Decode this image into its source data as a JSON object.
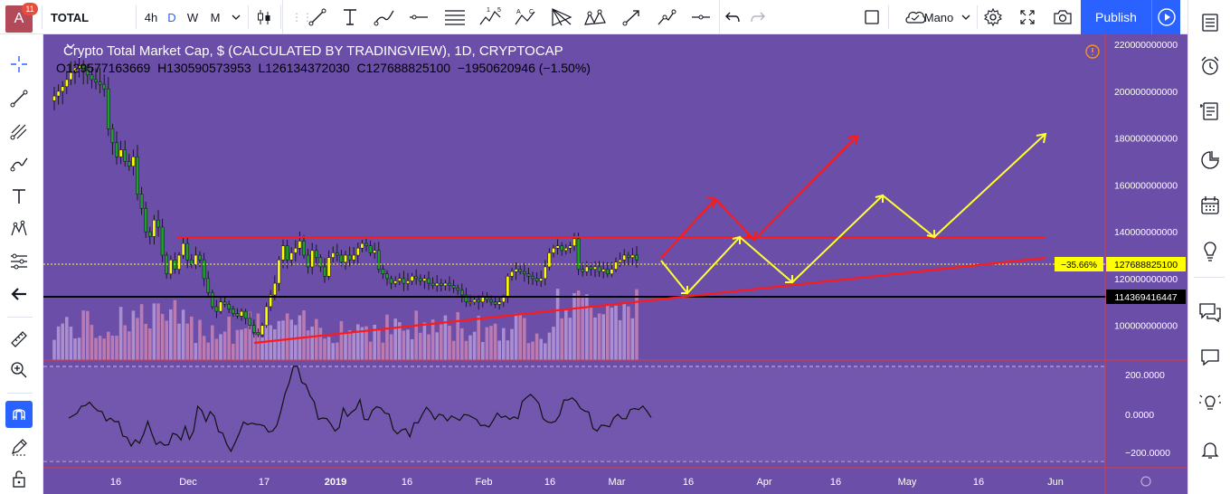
{
  "toolbar": {
    "symbol": "TOTAL",
    "intervals": [
      "4h",
      "D",
      "W",
      "M"
    ],
    "active_interval": "D",
    "layout_name": "Mano",
    "publish_label": "Publish",
    "notification_count": "11",
    "avatar_letter": "A",
    "drawing_tool_icons": [
      "trend-line-icon",
      "text-label-icon",
      "brush-icon",
      "horizontal-line-icon",
      "parallel-channel-icon",
      "elliott-wave-icon",
      "abc-pattern-icon",
      "gann-fan-icon",
      "xabcd-pattern-icon",
      "arrow-icon",
      "path-icon",
      "horizontal-ray-icon"
    ],
    "elliott_labels": [
      "1",
      "5"
    ],
    "abc_labels": [
      "A",
      "C"
    ]
  },
  "legend": {
    "title": "Crypto Total Market Cap, $ (CALCULATED BY TRADINGVIEW), 1D, CRYPTOCAP",
    "o_label": "O",
    "o_value": "129577163669",
    "h_label": "H",
    "h_value": "130590573953",
    "l_label": "L",
    "l_value": "126134372030",
    "c_label": "C",
    "c_value": "127688825100",
    "change": "−1950620946 (−1.50%)"
  },
  "price_axis": {
    "ticks": [
      "220000000000",
      "200000000000",
      "180000000000",
      "160000000000",
      "140000000000",
      "120000000000",
      "100000000000"
    ],
    "current_price_label": "127688825100",
    "current_change_label": "−35.66%",
    "support_label": "114369416447"
  },
  "oscillator_axis": {
    "ticks": [
      "200.0000",
      "0.0000",
      "−200.0000"
    ]
  },
  "time_axis": {
    "ticks": [
      "16",
      "Dec",
      "17",
      "2019",
      "16",
      "Feb",
      "16",
      "Mar",
      "16",
      "Apr",
      "16",
      "May",
      "16",
      "Jun"
    ]
  },
  "colors": {
    "chart_bg": "#6b4ea8",
    "bull_candle": "#ffff00",
    "bear_candle": "#1e9e2e",
    "red_annotation": "#ff1a1a",
    "yellow_annotation": "#ffff33",
    "support_line": "#000000",
    "accent": "#2962ff"
  },
  "chart_data": {
    "type": "candlestick",
    "title": "Crypto Total Market Cap, $ (CALCULATED BY TRADINGVIEW), 1D, CRYPTOCAP",
    "y_unit": "USD",
    "ylim": [
      90000000000,
      222000000000
    ],
    "candles_approx_close": [
      198000000000.0,
      200000000000.0,
      202000000000.0,
      205000000000.0,
      208000000000.0,
      210000000000.0,
      211000000000.0,
      209000000000.0,
      207000000000.0,
      205000000000.0,
      204000000000.0,
      203000000000.0,
      201000000000.0,
      184000000000.0,
      178000000000.0,
      172000000000.0,
      175000000000.0,
      170000000000.0,
      168000000000.0,
      172000000000.0,
      156000000000.0,
      150000000000.0,
      140000000000.0,
      138000000000.0,
      145000000000.0,
      142000000000.0,
      130000000000.0,
      122000000000.0,
      128000000000.0,
      124000000000.0,
      130000000000.0,
      135000000000.0,
      128000000000.0,
      126000000000.0,
      130000000000.0,
      128000000000.0,
      120000000000.0,
      114000000000.0,
      108000000000.0,
      106000000000.0,
      110000000000.0,
      109000000000.0,
      107000000000.0,
      105000000000.0,
      104000000000.0,
      106000000000.0,
      103000000000.0,
      100000000000.0,
      97000000000.0,
      96000000000.0,
      100000000000.0,
      108000000000.0,
      113000000000.0,
      118000000000.0,
      128000000000.0,
      134000000000.0,
      128000000000.0,
      131000000000.0,
      133000000000.0,
      136000000000.0,
      130000000000.0,
      125000000000.0,
      132000000000.0,
      129000000000.0,
      125000000000.0,
      121000000000.0,
      129000000000.0,
      131000000000.0,
      130000000000.0,
      127000000000.0,
      130000000000.0,
      128000000000.0,
      130000000000.0,
      133000000000.0,
      135000000000.0,
      134000000000.0,
      131000000000.0,
      132000000000.0,
      124000000000.0,
      122000000000.0,
      120000000000.0,
      118000000000.0,
      119000000000.0,
      120000000000.0,
      118000000000.0,
      119000000000.0,
      121000000000.0,
      120000000000.0,
      119000000000.0,
      120000000000.0,
      118000000000.0,
      117000000000.0,
      118000000000.0,
      117000000000.0,
      118000000000.0,
      117000000000.0,
      116000000000.0,
      115000000000.0,
      113000000000.0,
      110000000000.0,
      110000000000.0,
      111000000000.0,
      110000000000.0,
      112000000000.0,
      111000000000.0,
      110000000000.0,
      109000000000.0,
      110000000000.0,
      112000000000.0,
      121000000000.0,
      123000000000.0,
      124000000000.0,
      123000000000.0,
      122000000000.0,
      121000000000.0,
      120000000000.0,
      119000000000.0,
      120000000000.0,
      125000000000.0,
      131000000000.0,
      133000000000.0,
      134000000000.0,
      132000000000.0,
      133000000000.0,
      134000000000.0,
      137000000000.0,
      124000000000.0,
      123000000000.0,
      125000000000.0,
      124000000000.0,
      125000000000.0,
      123000000000.0,
      124000000000.0,
      122000000000.0,
      124000000000.0,
      127000000000.0,
      128000000000.0,
      130000000000.0,
      129000000000.0,
      130000000000.0,
      128000000000.0
    ],
    "last_close": 127688825100,
    "resistance": 139000000000,
    "support": 114369416447
  }
}
